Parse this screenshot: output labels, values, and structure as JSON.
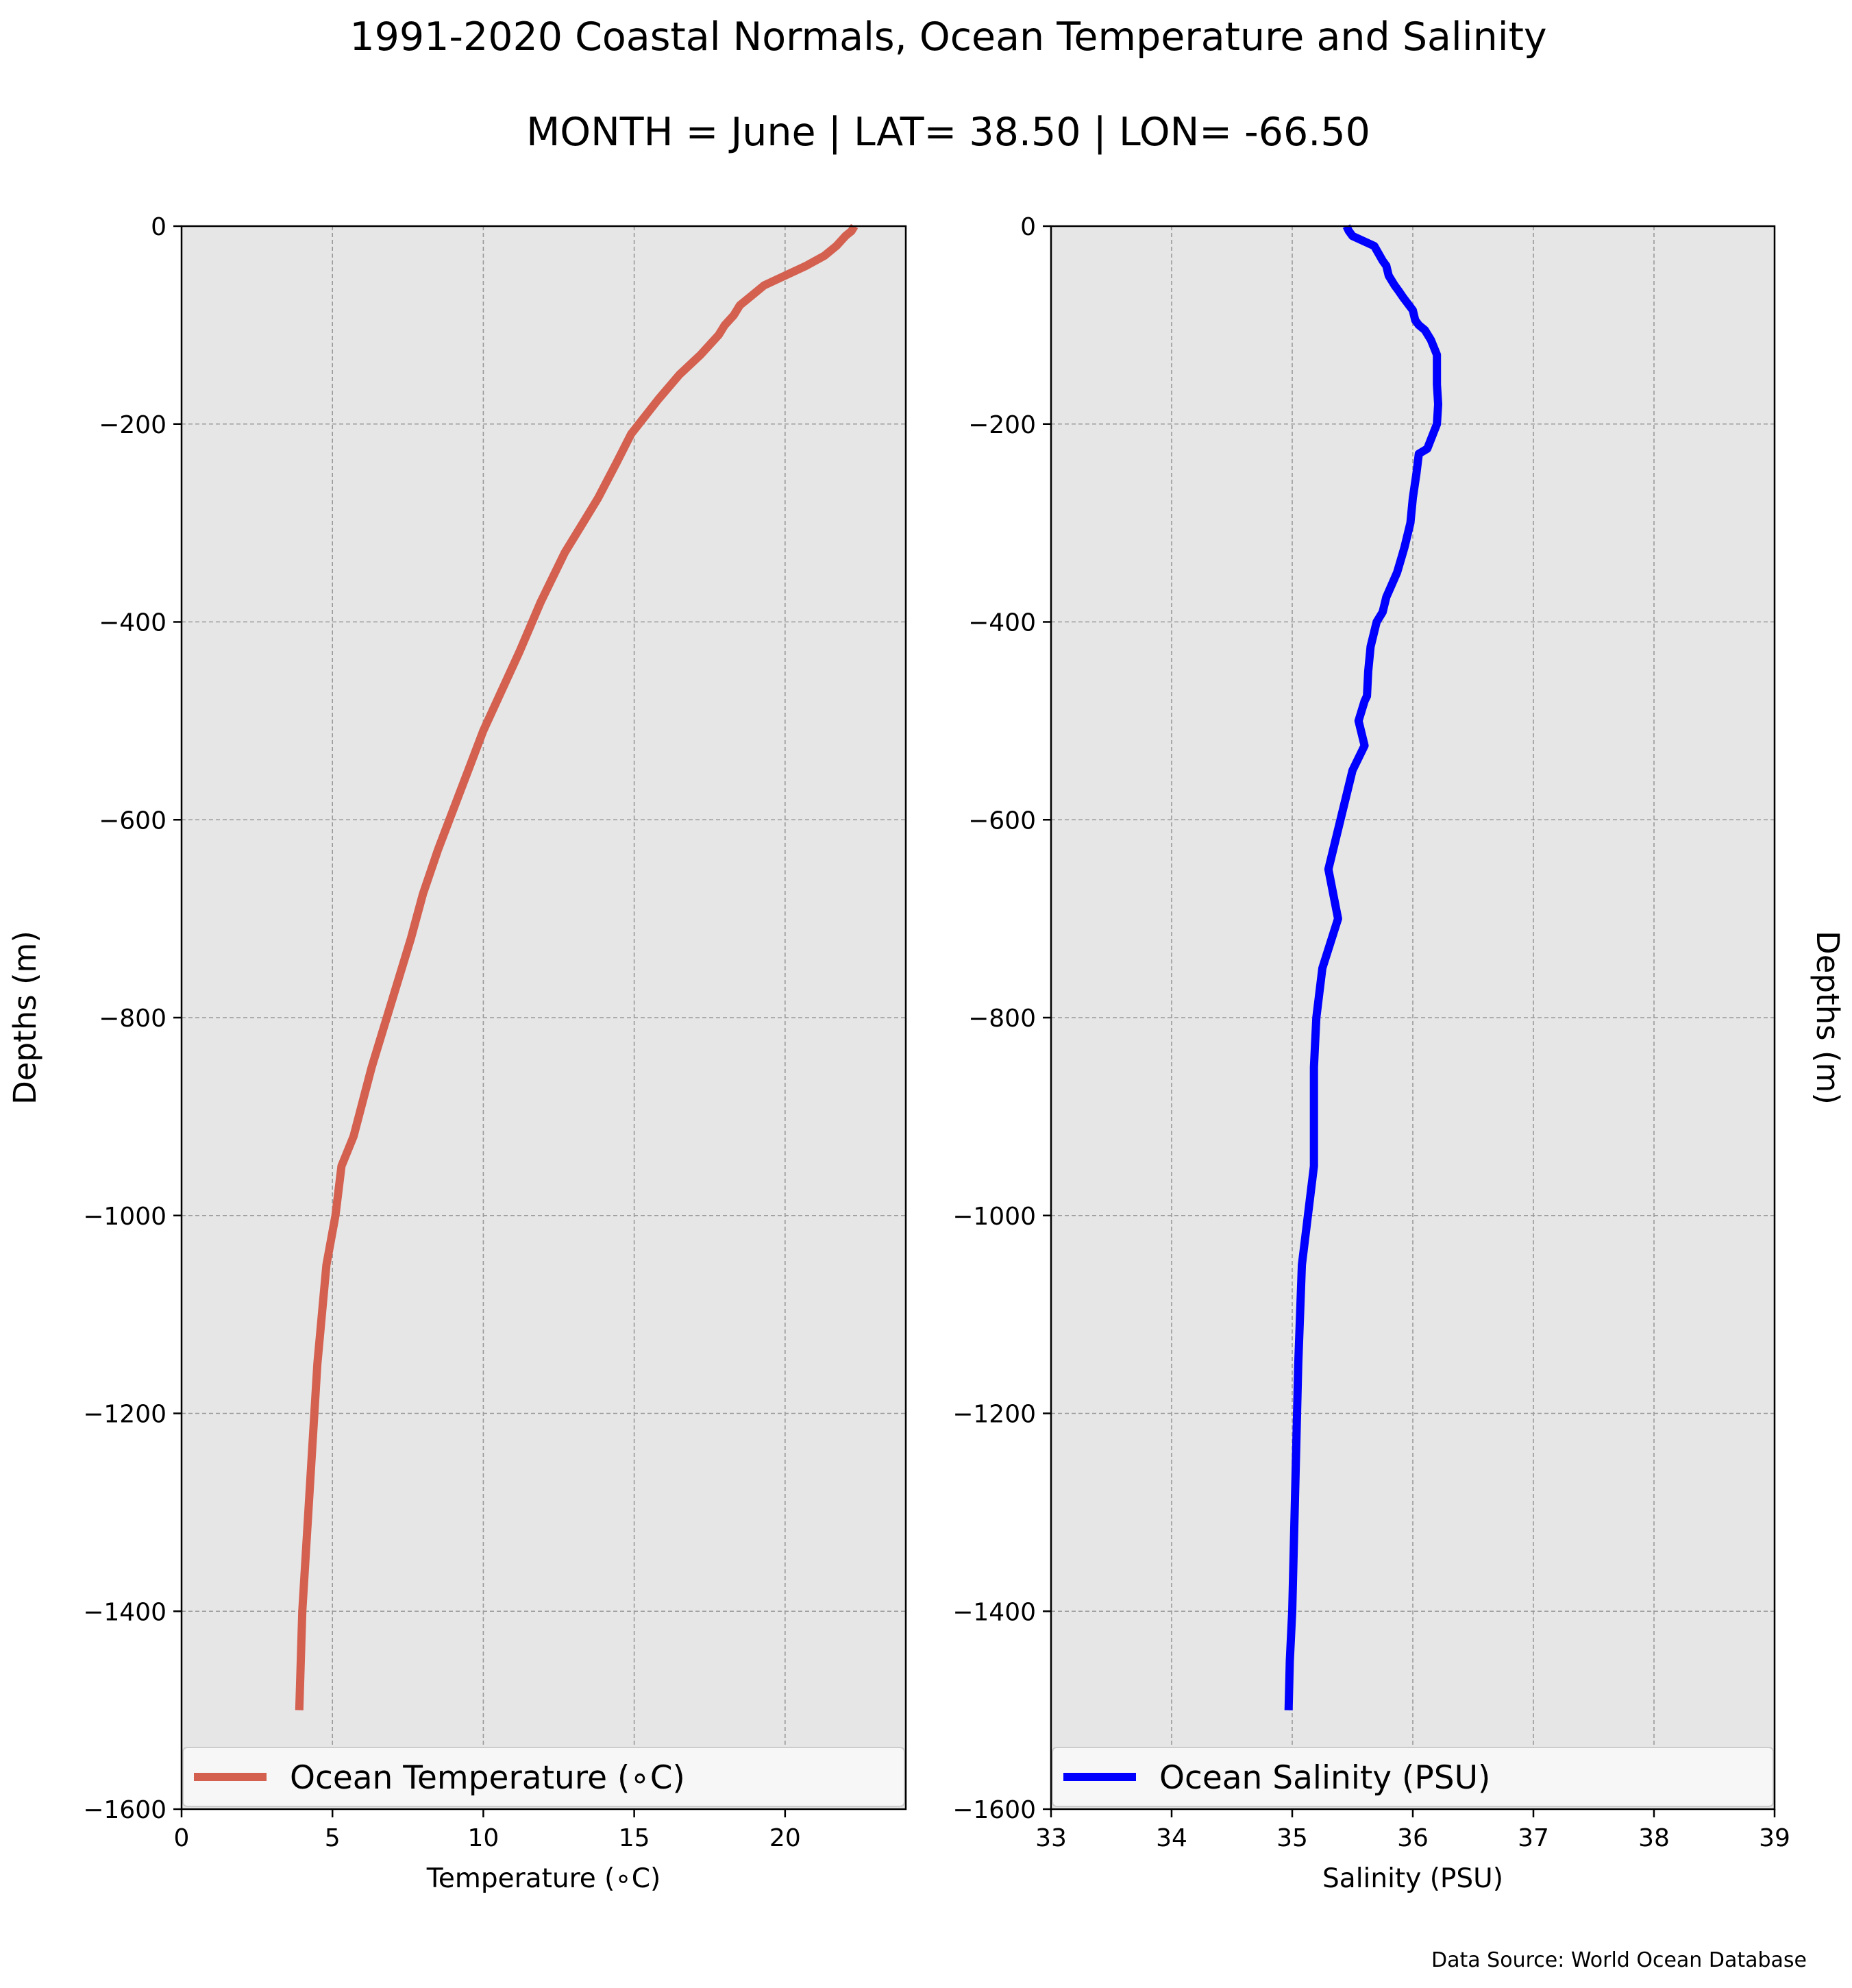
{
  "title": "1991-2020 Coastal Normals, Ocean Temperature and Salinity",
  "subtitle": "MONTH = June | LAT= 38.50 | LON= -66.50",
  "source": "Data Source: World Ocean Database",
  "chart_data": [
    {
      "type": "line",
      "xlabel": "Temperature (∘C)",
      "ylabel": "Depths (m)",
      "xlim": [
        0,
        24
      ],
      "ylim": [
        -1600,
        0
      ],
      "xticks": [
        "0",
        "5",
        "10",
        "15",
        "20"
      ],
      "yticks": [
        "0",
        "−200",
        "−400",
        "−600",
        "−800",
        "−1000",
        "−1200",
        "−1400",
        "−1600"
      ],
      "grid": true,
      "legend_placement": "bottom",
      "series": [
        {
          "name": "Ocean Temperature (∘C)",
          "color": "#d46050",
          "x": [
            22.3,
            22.2,
            22.0,
            21.7,
            21.3,
            20.7,
            20.0,
            19.3,
            18.9,
            18.7,
            18.5,
            18.3,
            18.0,
            17.8,
            17.2,
            16.5,
            15.8,
            14.9,
            14.4,
            13.8,
            13.3,
            12.7,
            11.9,
            11.2,
            10.6,
            10.0,
            9.5,
            9.0,
            8.5,
            8.0,
            7.6,
            6.8,
            6.3,
            5.7,
            5.3,
            5.1,
            4.8,
            4.5,
            4.2,
            4.1,
            4.0,
            3.9
          ],
          "y": [
            0,
            -5,
            -10,
            -20,
            -30,
            -40,
            -50,
            -60,
            -70,
            -75,
            -80,
            -90,
            -100,
            -110,
            -130,
            -150,
            -175,
            -210,
            -240,
            -275,
            -300,
            -330,
            -380,
            -430,
            -470,
            -510,
            -550,
            -590,
            -630,
            -675,
            -720,
            -800,
            -850,
            -920,
            -950,
            -1000,
            -1050,
            -1150,
            -1300,
            -1350,
            -1400,
            -1500
          ]
        }
      ]
    },
    {
      "type": "line",
      "xlabel": "Salinity (PSU)",
      "ylabel": "Depths (m)",
      "xlim": [
        33,
        39
      ],
      "ylim": [
        -1600,
        0
      ],
      "xticks": [
        "33",
        "34",
        "35",
        "36",
        "37",
        "38",
        "39"
      ],
      "yticks": [
        "0",
        "−200",
        "−400",
        "−600",
        "−800",
        "−1000",
        "−1200",
        "−1400",
        "−1600"
      ],
      "grid": true,
      "legend_placement": "bottom",
      "series": [
        {
          "name": "Ocean Salinity (PSU)",
          "color": "#0000ff",
          "x": [
            35.45,
            35.47,
            35.5,
            35.68,
            35.75,
            35.78,
            35.8,
            35.85,
            35.88,
            35.92,
            36.0,
            36.02,
            36.05,
            36.1,
            36.15,
            36.2,
            36.2,
            36.21,
            36.2,
            36.12,
            36.05,
            36.03,
            36.0,
            35.98,
            35.93,
            35.87,
            35.78,
            35.75,
            35.7,
            35.65,
            35.63,
            35.62,
            35.6,
            35.55,
            35.6,
            35.5,
            35.4,
            35.3,
            35.38,
            35.25,
            35.2,
            35.18,
            35.18,
            35.08,
            35.05,
            35.03,
            35.0,
            34.98,
            34.97
          ],
          "y": [
            0,
            -5,
            -10,
            -20,
            -35,
            -40,
            -50,
            -60,
            -65,
            -72,
            -85,
            -95,
            -100,
            -105,
            -115,
            -130,
            -160,
            -180,
            -200,
            -225,
            -230,
            -250,
            -275,
            -300,
            -325,
            -350,
            -375,
            -390,
            -400,
            -425,
            -450,
            -475,
            -480,
            -500,
            -525,
            -550,
            -600,
            -650,
            -700,
            -750,
            -800,
            -850,
            -950,
            -1050,
            -1150,
            -1250,
            -1400,
            -1450,
            -1500
          ]
        }
      ]
    }
  ]
}
